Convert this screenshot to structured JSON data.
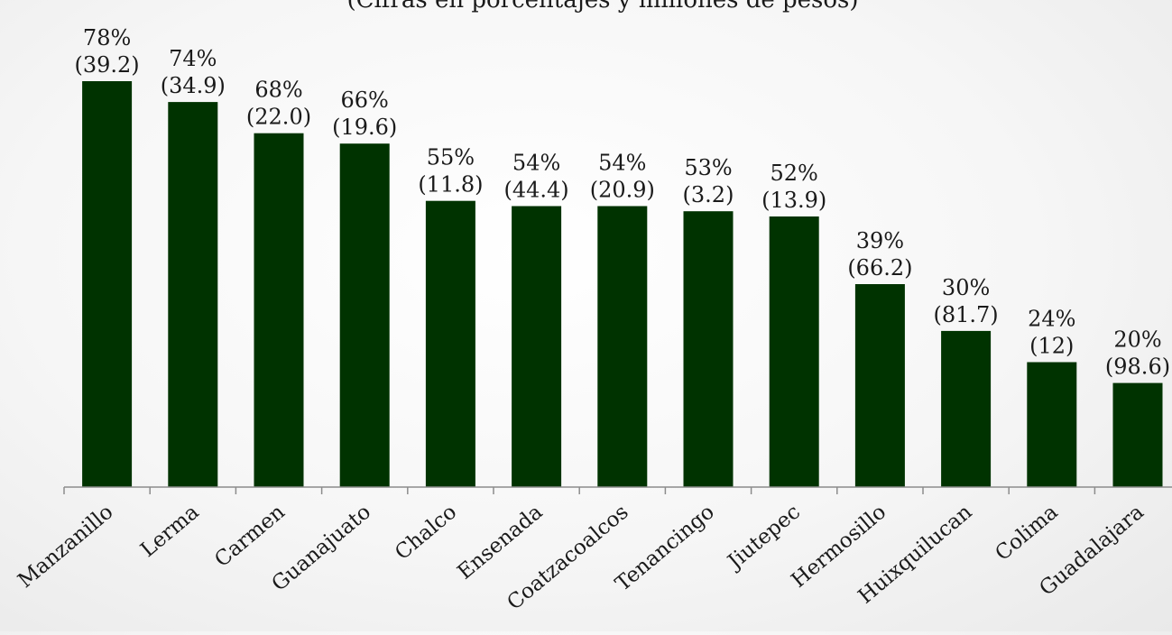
{
  "chart_data": {
    "type": "bar",
    "subtitle": "(Cifras en porcentajes y millones de pesos)",
    "categories": [
      "Manzanillo",
      "Lerma",
      "Carmen",
      "Guanajuato",
      "Chalco",
      "Ensenada",
      "Coatzacoalcos",
      "Tenancingo",
      "Jiutepec",
      "Hermosillo",
      "Huixquilucan",
      "Colima",
      "Guadalajara"
    ],
    "values": [
      78,
      74,
      68,
      66,
      55,
      54,
      54,
      53,
      52,
      39,
      30,
      24,
      20
    ],
    "value_labels": [
      "78%",
      "74%",
      "68%",
      "66%",
      "55%",
      "54%",
      "54%",
      "53%",
      "52%",
      "39%",
      "30%",
      "24%",
      "20%"
    ],
    "secondary_labels": [
      "(39.2)",
      "(34.9)",
      "(22.0)",
      "(19.6)",
      "(11.8)",
      "(44.4)",
      "(20.9)",
      "(3.2)",
      "(13.9)",
      "(66.2)",
      "(81.7)",
      "(12)",
      "(98.6)"
    ],
    "ylim": [
      0,
      78
    ],
    "grid": false,
    "bar_color": "#003300"
  }
}
